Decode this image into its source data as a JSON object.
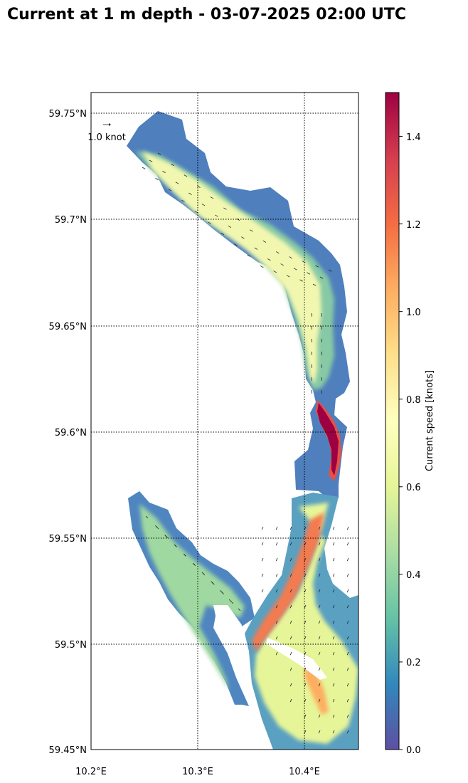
{
  "title": "Current at 1 m depth - 03-07-2025 02:00 UTC",
  "map": {
    "lon_range": [
      10.2,
      10.45
    ],
    "lat_range": [
      59.45,
      59.76
    ],
    "lat_ticks": [
      {
        "value": 59.75,
        "label": "59.75°N"
      },
      {
        "value": 59.7,
        "label": "59.7°N"
      },
      {
        "value": 59.65,
        "label": "59.65°N"
      },
      {
        "value": 59.6,
        "label": "59.6°N"
      },
      {
        "value": 59.55,
        "label": "59.55°N"
      },
      {
        "value": 59.5,
        "label": "59.5°N"
      },
      {
        "value": 59.45,
        "label": "59.45°N"
      }
    ],
    "lon_ticks": [
      {
        "value": 10.2,
        "label": "10.2°E"
      },
      {
        "value": 10.3,
        "label": "10.3°E"
      },
      {
        "value": 10.4,
        "label": "10.4°E"
      }
    ],
    "grid": "dotted",
    "reference_arrow_label": "1.0 knot",
    "reference_arrow_value": 1.0
  },
  "colorbar": {
    "label": "Current speed [knots]",
    "range": [
      0,
      1.5
    ],
    "ticks": [
      {
        "value": 0.0,
        "label": "0.0"
      },
      {
        "value": 0.2,
        "label": "0.2"
      },
      {
        "value": 0.4,
        "label": "0.4"
      },
      {
        "value": 0.6,
        "label": "0.6"
      },
      {
        "value": 0.8,
        "label": "0.8"
      },
      {
        "value": 1.0,
        "label": "1.0"
      },
      {
        "value": 1.2,
        "label": "1.2"
      },
      {
        "value": 1.4,
        "label": "1.4"
      }
    ],
    "colormap": "Spectral_r",
    "colors": [
      "#5e4fa2",
      "#3288bd",
      "#66c2a5",
      "#abdda4",
      "#e6f598",
      "#ffffbf",
      "#fee08b",
      "#fdae61",
      "#f46d43",
      "#d53e4f",
      "#9e0142"
    ]
  }
}
